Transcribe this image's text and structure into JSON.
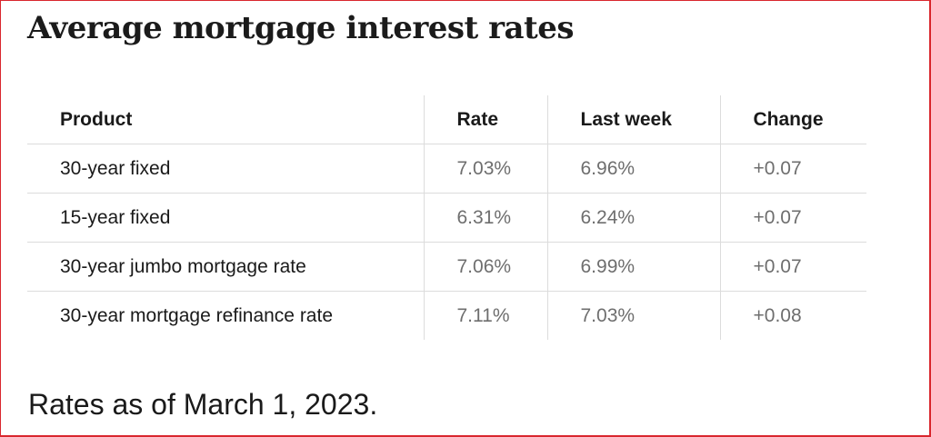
{
  "title": "Average mortgage interest rates",
  "table": {
    "headers": {
      "product": "Product",
      "rate": "Rate",
      "last_week": "Last week",
      "change": "Change"
    },
    "rows": [
      {
        "product": "30-year fixed",
        "rate": "7.03%",
        "last_week": "6.96%",
        "change": "+0.07"
      },
      {
        "product": "15-year fixed",
        "rate": "6.31%",
        "last_week": "6.24%",
        "change": "+0.07"
      },
      {
        "product": "30-year jumbo mortgage rate",
        "rate": "7.06%",
        "last_week": "6.99%",
        "change": "+0.07"
      },
      {
        "product": "30-year mortgage refinance rate",
        "rate": "7.11%",
        "last_week": "7.03%",
        "change": "+0.08"
      }
    ]
  },
  "footnote": "Rates as of March 1, 2023.",
  "colors": {
    "frame_border": "#d9272e",
    "header_text": "#1a1a1a",
    "value_text": "#6e6e6e",
    "grid_line": "#dcdcdc"
  }
}
